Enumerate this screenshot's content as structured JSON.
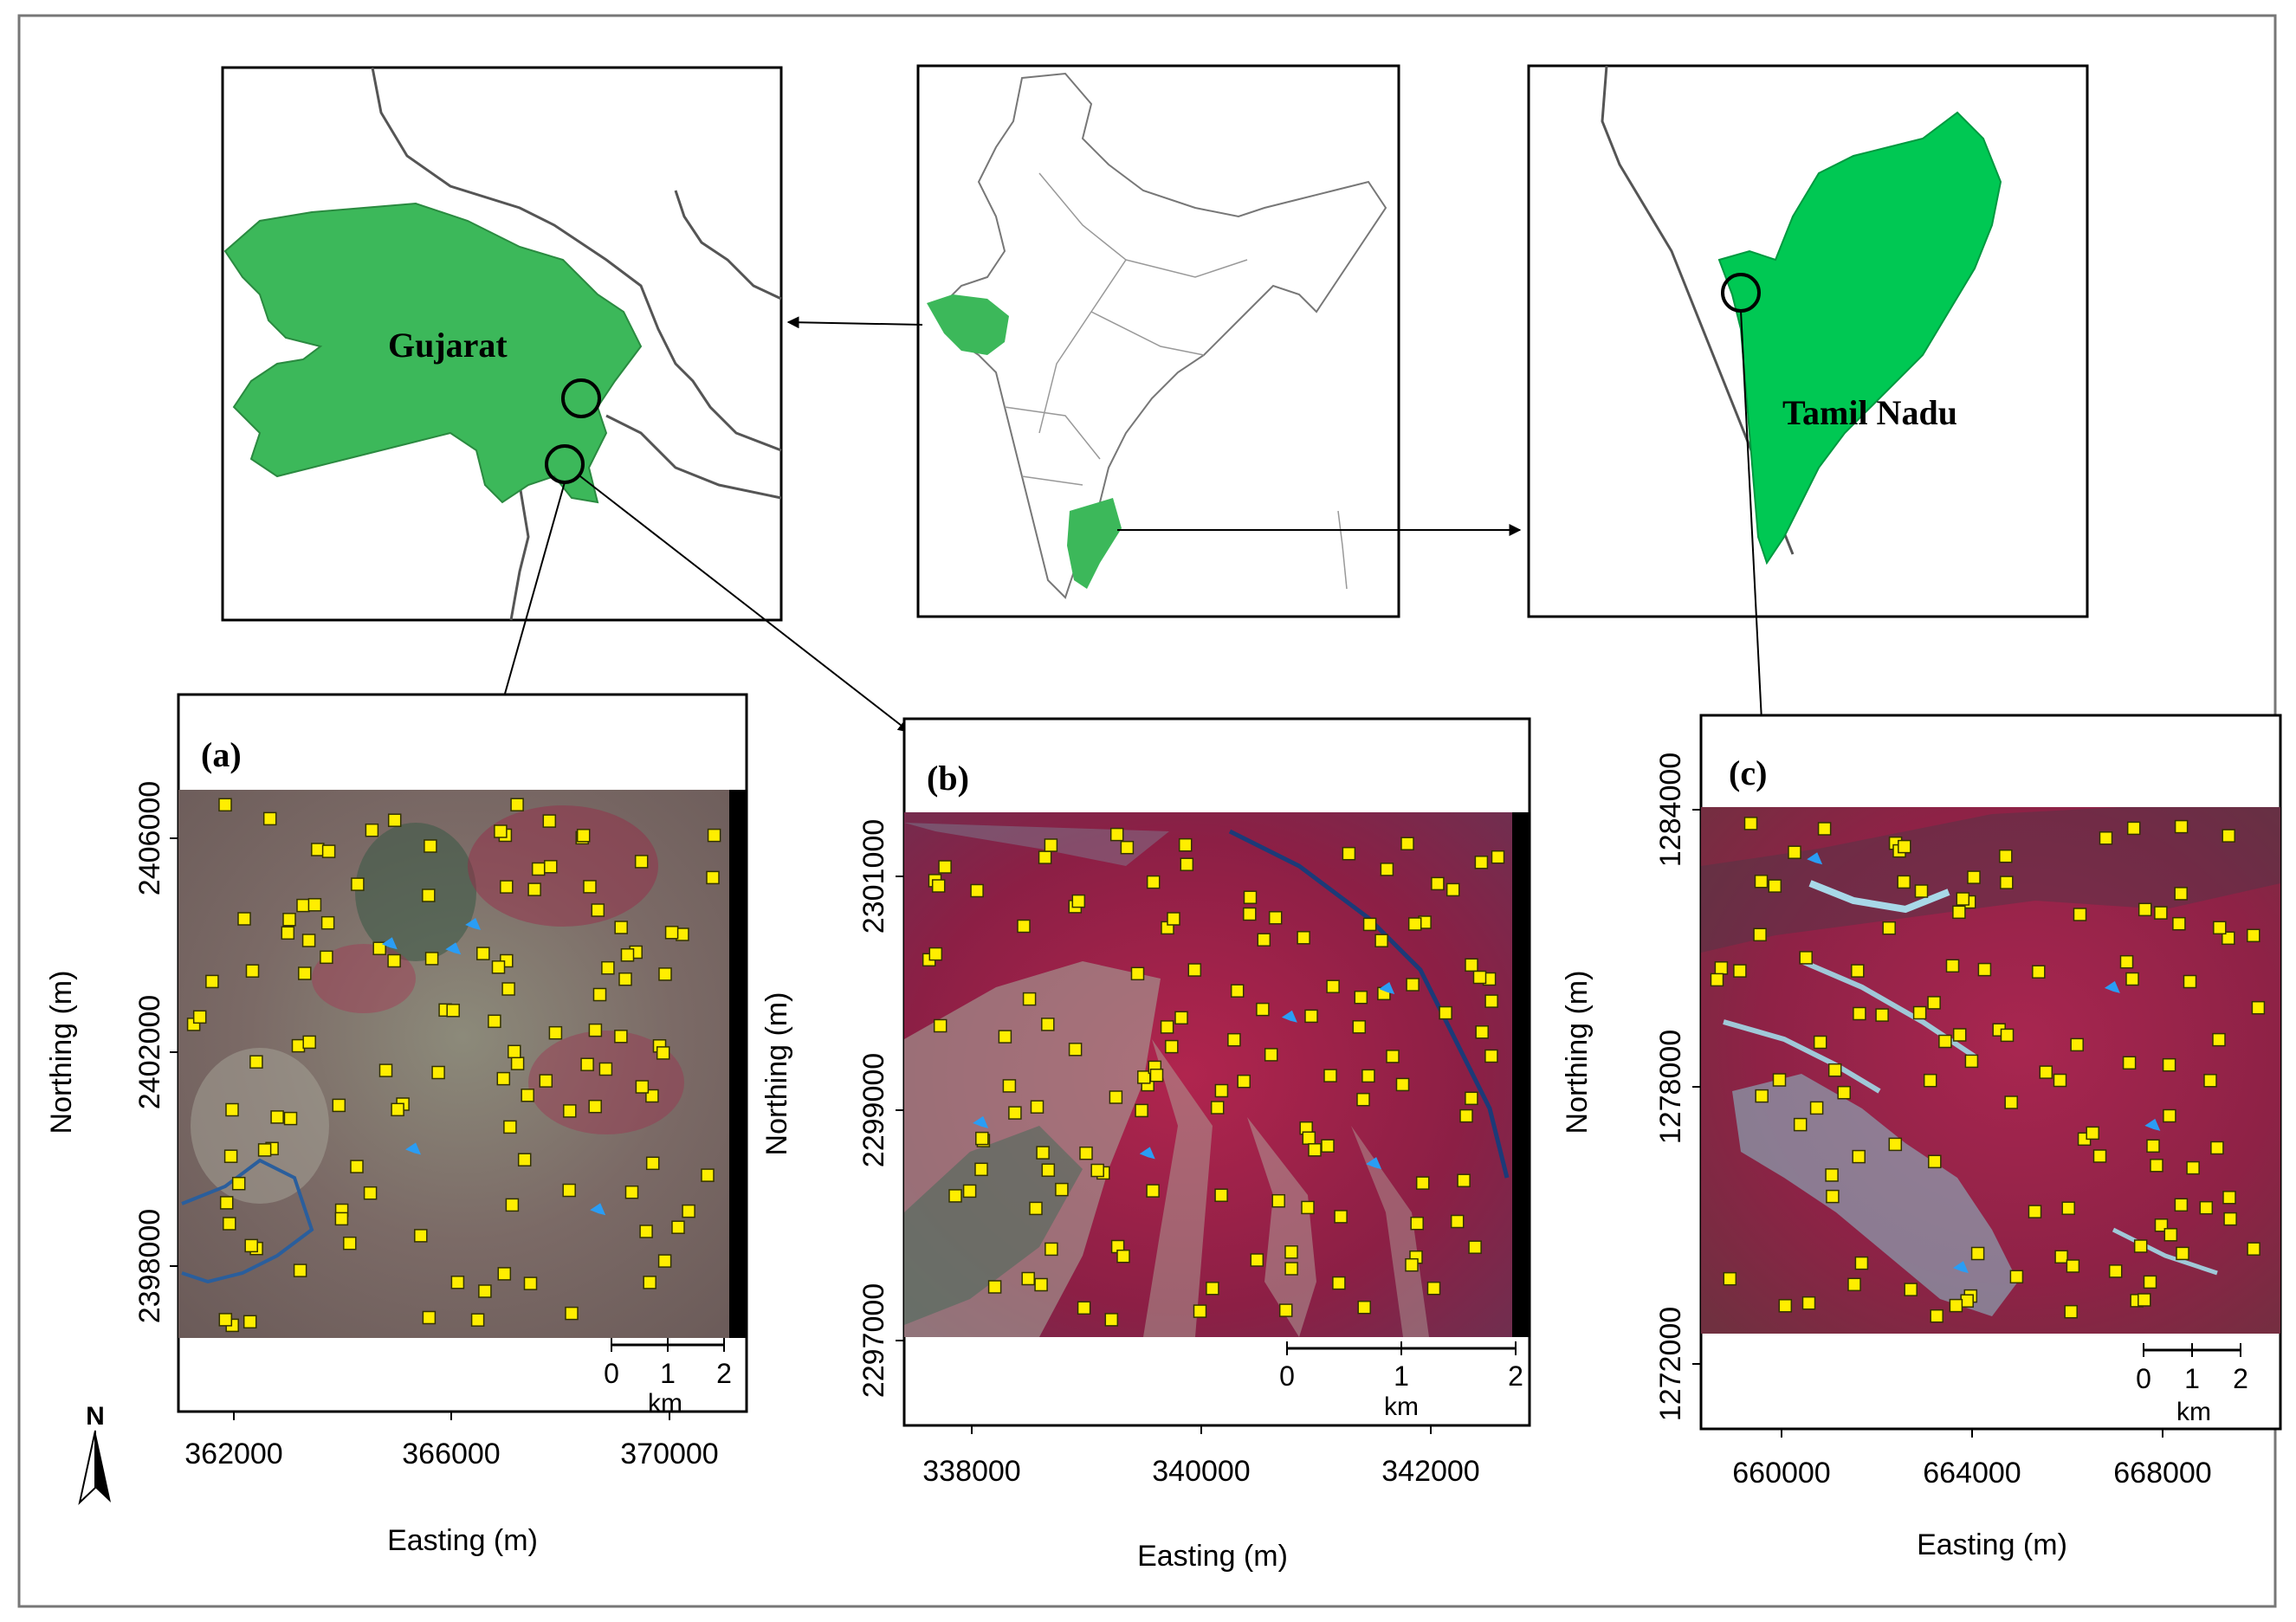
{
  "regions": {
    "gujarat": "Gujarat",
    "tamil_nadu": "Tamil Nadu"
  },
  "colors": {
    "state_fill": "#3cb85a",
    "tn_fill": "#00c853",
    "sample_point": "#ffee00",
    "sample_point_border": "#333300",
    "water_marker": "#2a9df4",
    "border": "#000000"
  },
  "panels": [
    {
      "label": "(a)",
      "xlabel": "Easting (m)",
      "ylabel": "Northing (m)",
      "xticks": [
        "362000",
        "366000",
        "370000"
      ],
      "yticks": [
        "2406000",
        "2402000",
        "2398000"
      ],
      "scalebar_ticks": [
        "0",
        "1",
        "2"
      ],
      "scalebar_unit": "km",
      "north_arrow": "N"
    },
    {
      "label": "(b)",
      "xlabel": "Easting (m)",
      "ylabel": "Northing (m)",
      "xticks": [
        "338000",
        "340000",
        "342000"
      ],
      "yticks": [
        "2301000",
        "2299000",
        "2297000"
      ],
      "scalebar_ticks": [
        "0",
        "1",
        "2"
      ],
      "scalebar_unit": "km"
    },
    {
      "label": "(c)",
      "xlabel": "Easting (m)",
      "ylabel": "Northing (m)",
      "xticks": [
        "660000",
        "664000",
        "668000"
      ],
      "yticks": [
        "1284000",
        "1278000",
        "1272000"
      ],
      "scalebar_ticks": [
        "0",
        "1",
        "2"
      ],
      "scalebar_unit": "km"
    }
  ]
}
